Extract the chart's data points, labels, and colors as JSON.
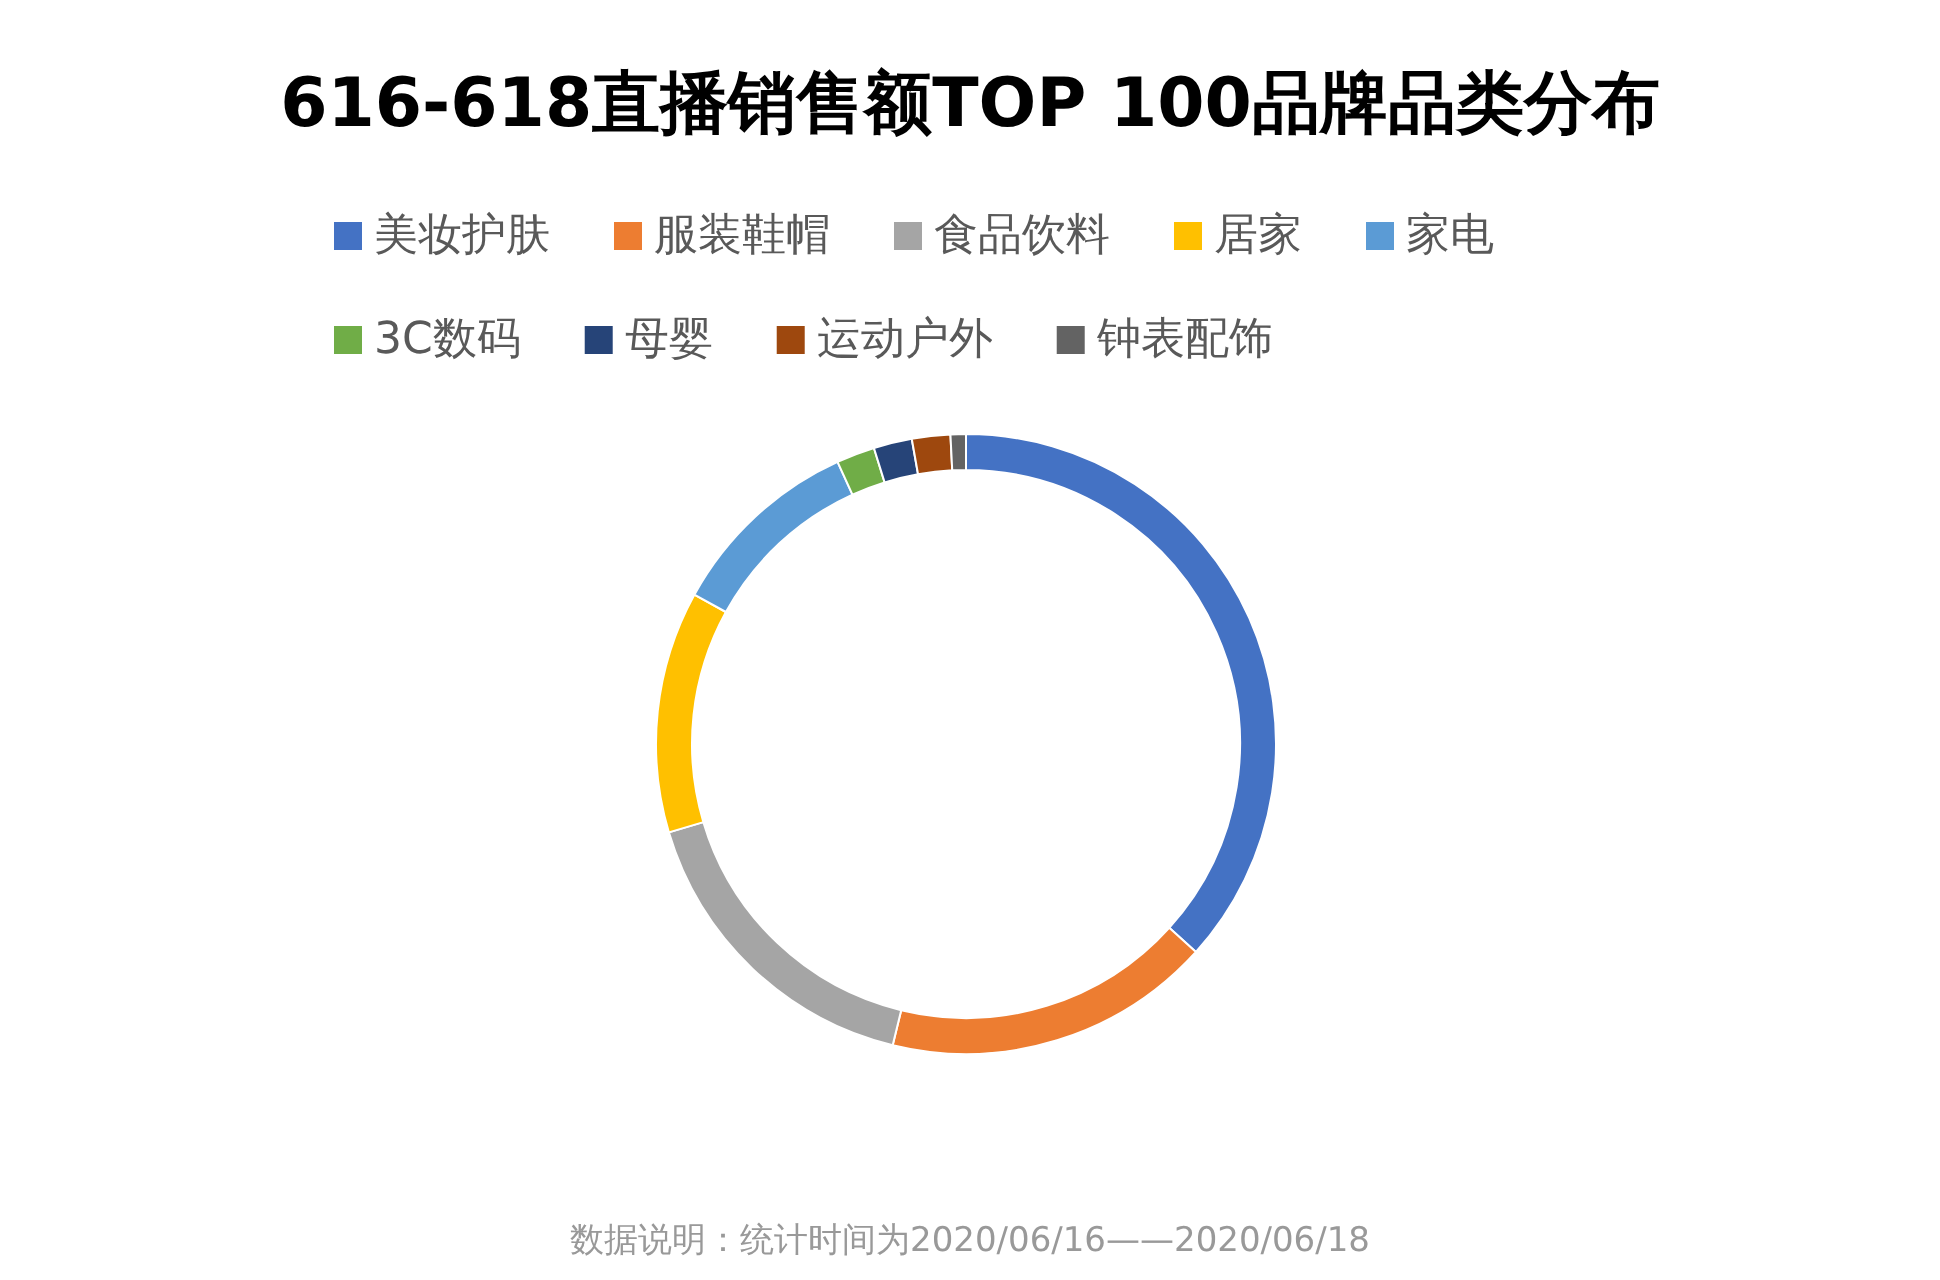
{
  "chart_data": {
    "type": "donut",
    "title": "616-618直播销售额TOP 100品牌品类分布",
    "categories": [
      "美妆护肤",
      "服装鞋帽",
      "食品饮料",
      "居家",
      "家电",
      "3C数码",
      "母婴",
      "运动户外",
      "钟表配饰"
    ],
    "values": [
      36.7,
      17.1,
      16.6,
      12.6,
      10.2,
      2,
      2,
      2,
      0.8
    ],
    "colors": [
      "#4472c4",
      "#ed7d31",
      "#a5a5a5",
      "#ffc000",
      "#5b9bd5",
      "#70ad47",
      "#264478",
      "#9e480e",
      "#636363"
    ],
    "legend": "top",
    "annotations": [
      "数据说明：统计时间为2020/06/16——2020/06/18"
    ]
  }
}
